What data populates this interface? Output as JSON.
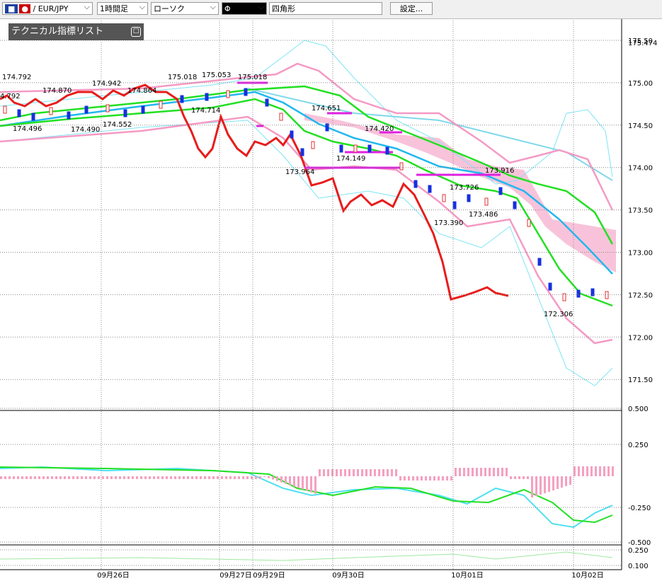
{
  "toolbar": {
    "symbol": "EUR/JPY",
    "timeframe": "1時間足",
    "chart_style": "ローソク",
    "drawing_tool": "Φ",
    "shape": "四角形",
    "settings": "設定..."
  },
  "indicator_panel": {
    "title": "テクニカル指標リスト"
  },
  "price_axis": [
    "175.50",
    "175.00",
    "174.50",
    "174.00",
    "173.50",
    "173.00",
    "172.50",
    "172.00",
    "171.50"
  ],
  "current_price": "175.474",
  "macd_axis": [
    "0.500",
    "0.250",
    "-0.250",
    "-0.500"
  ],
  "sub_axis": [
    "0.250",
    "0.100"
  ],
  "dates": [
    "09月26日",
    "09月27日",
    "09月29日",
    "09月30日",
    "10月01日",
    "10月02日"
  ],
  "annotations": [
    "174.792",
    "4.792",
    "174.870",
    "174.942",
    "174.864",
    "175.018",
    "175.053",
    "175.018",
    "174.714",
    "174.496",
    "174.490",
    "174.552",
    "174.651",
    "174.420",
    "174.149",
    "173.964",
    "173.916",
    "173.726",
    "173.486",
    "173.390",
    "172.306"
  ]
}
